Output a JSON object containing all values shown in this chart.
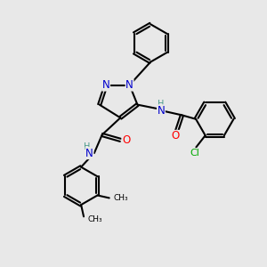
{
  "bg_color": "#e8e8e8",
  "bond_color": "#000000",
  "bond_width": 1.5,
  "atom_colors": {
    "N": "#0000cd",
    "O": "#ff0000",
    "Cl": "#00aa00",
    "C": "#000000",
    "H": "#4a9a8a"
  },
  "font_size_atom": 8.5,
  "font_size_small": 7.0,
  "font_size_cl": 8.0
}
